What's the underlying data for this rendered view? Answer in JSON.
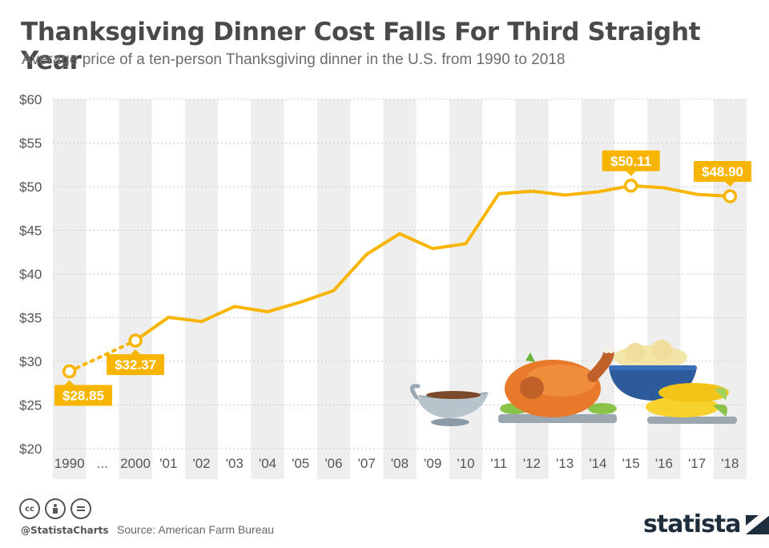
{
  "title": "Thanksgiving Dinner Cost Falls For Third Straight Year",
  "subtitle": "Average price of a ten-person Thanksgiving dinner in the U.S. from 1990 to 2018",
  "footer": {
    "handle": "@StatistaCharts",
    "source": "Source: American Farm Bureau",
    "brand": "statista",
    "license_icons": [
      "cc-icon",
      "attribution-icon",
      "no-derivatives-icon"
    ]
  },
  "colors": {
    "line": "#f7b500",
    "title": "#4a4a4a",
    "band": "#eeeeee"
  },
  "chart_data": {
    "type": "line",
    "categories": [
      "1990",
      "...",
      "2000",
      "'01",
      "'02",
      "'03",
      "'04",
      "'05",
      "'06",
      "'07",
      "'08",
      "'09",
      "'10",
      "'11",
      "'12",
      "'13",
      "'14",
      "'15",
      "'16",
      "'17",
      "'18"
    ],
    "values": [
      28.85,
      null,
      32.37,
      35.04,
      34.56,
      36.28,
      35.68,
      36.78,
      38.1,
      42.26,
      44.61,
      42.91,
      43.47,
      49.2,
      49.48,
      49.04,
      49.41,
      50.11,
      49.87,
      49.12,
      48.9
    ],
    "dotted_segment": [
      "1990",
      "2000"
    ],
    "data_labels": [
      {
        "category": "1990",
        "label": "$28.85"
      },
      {
        "category": "2000",
        "label": "$32.37"
      },
      {
        "category": "'15",
        "label": "$50.11"
      },
      {
        "category": "'18",
        "label": "$48.90"
      }
    ],
    "y_ticks": [
      "$60",
      "$55",
      "$50",
      "$45",
      "$40",
      "$35",
      "$30",
      "$25",
      "$20"
    ],
    "ylim": [
      20,
      60
    ],
    "grid": true,
    "xlabel": "",
    "ylabel": ""
  }
}
